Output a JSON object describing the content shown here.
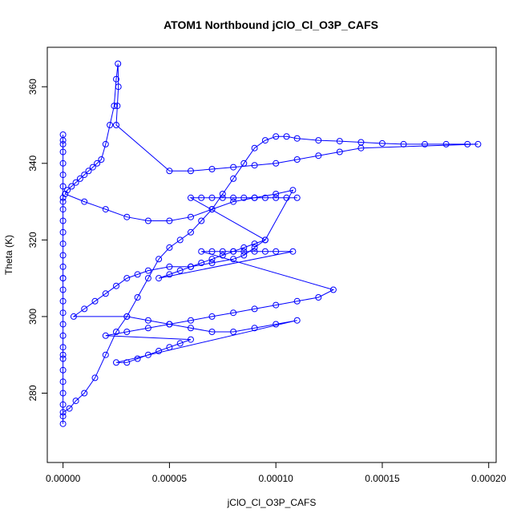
{
  "chart_data": {
    "type": "scatter",
    "title": "ATOM1 Northbound jClO_Cl_O3P_CAFS",
    "xlabel": "jClO_Cl_O3P_CAFS",
    "ylabel": "Theta (K)",
    "xlim": [
      -7.4e-06,
      0.0002035
    ],
    "ylim": [
      261.9,
      370.3
    ],
    "xticks": [
      0,
      5e-05,
      0.0001,
      0.00015,
      0.0002
    ],
    "xtick_labels": [
      "0.00000",
      "0.00005",
      "0.00010",
      "0.00015",
      "0.00020"
    ],
    "yticks": [
      280,
      300,
      320,
      340,
      360
    ],
    "ytick_labels": [
      "280",
      "300",
      "320",
      "340",
      "360"
    ],
    "grid": false,
    "marker": "open circle with connecting lines",
    "series_color": "#0000ff",
    "series": [
      {
        "name": "",
        "x": [
          0,
          0,
          0,
          0,
          0,
          0,
          0,
          0,
          0,
          0,
          0,
          0,
          0,
          0,
          0,
          0,
          0,
          0,
          0,
          0,
          0,
          0,
          0,
          0,
          0,
          0,
          0,
          0,
          0,
          0,
          0,
          0,
          3e-06,
          6e-06,
          1e-05,
          1.5e-05,
          2e-05,
          2.5e-05,
          3e-05,
          3.5e-05,
          4e-05,
          4.5e-05,
          5e-05,
          5.5e-05,
          6e-05,
          6.5e-05,
          7e-05,
          7.5e-05,
          8e-05,
          8.5e-05,
          9e-05,
          9.5e-05,
          0.0001,
          0.000105,
          0.00011,
          0.00012,
          0.00013,
          0.00014,
          0.00015,
          0.00016,
          0.00017,
          0.00018,
          0.00019,
          0.000195,
          0.00014,
          0.00013,
          0.00012,
          0.00011,
          0.0001,
          9e-05,
          8e-05,
          7e-05,
          6e-05,
          5e-05,
          2.5e-05,
          2.55e-05,
          2.6e-05,
          2.58e-05,
          2.5e-05,
          2.4e-05,
          2.2e-05,
          2e-05,
          1.8e-05,
          1.6e-05,
          1.4e-05,
          1.2e-05,
          1e-05,
          8e-06,
          6e-06,
          4e-06,
          2e-06,
          1e-06,
          1e-05,
          2e-05,
          3e-05,
          4e-05,
          5e-05,
          6e-05,
          7e-05,
          8e-05,
          9e-05,
          0.0001,
          0.000108,
          9.5e-05,
          9e-05,
          8.5e-05,
          8e-05,
          7e-05,
          6e-05,
          5e-05,
          4e-05,
          3.5e-05,
          3e-05,
          2.5e-05,
          2e-05,
          1.5e-05,
          1e-05,
          5e-06,
          3e-05,
          4e-05,
          5e-05,
          6e-05,
          7e-05,
          8e-05,
          9e-05,
          0.0001,
          0.00011,
          2.5e-05,
          3e-05,
          3.5e-05,
          4e-05,
          4.5e-05,
          5e-05,
          5.5e-05,
          6e-05,
          2e-05,
          3e-05,
          4e-05,
          5e-05,
          6e-05,
          7e-05,
          8e-05,
          9e-05,
          0.0001,
          0.00011,
          0.00012,
          0.000127,
          6.5e-05,
          7e-05,
          7.5e-05,
          8e-05,
          8.5e-05,
          9e-05,
          9.5e-05,
          0.0001,
          0.000108,
          4.5e-05,
          5e-05,
          5.5e-05,
          6e-05,
          6.5e-05,
          7e-05,
          7.5e-05,
          8e-05,
          8.5e-05,
          9e-05,
          9.5e-05,
          6e-05,
          6.5e-05,
          7e-05,
          7.5e-05,
          8e-05,
          8.5e-05,
          9e-05,
          9.5e-05,
          0.0001,
          0.000105,
          0.00011
        ],
        "y": [
          272,
          274,
          277,
          280,
          283,
          286,
          289,
          292,
          295,
          298,
          301,
          304,
          307,
          310,
          313,
          316,
          319,
          322,
          325,
          328,
          331,
          334,
          337,
          340,
          343,
          346,
          347.5,
          345,
          330,
          310,
          290,
          275,
          276,
          278,
          280,
          284,
          290,
          296,
          300,
          305,
          310,
          315,
          318,
          320,
          322,
          325,
          328,
          332,
          336,
          340,
          344,
          346,
          347,
          347,
          346.5,
          346,
          345.8,
          345.5,
          345.2,
          345,
          345,
          345,
          345,
          345,
          344,
          343,
          342,
          341,
          340,
          339.5,
          339,
          338.5,
          338,
          338,
          350,
          355,
          360,
          366,
          362,
          355,
          350,
          345,
          341,
          340,
          339,
          338,
          337,
          336,
          335,
          334,
          333,
          332,
          330,
          328,
          326,
          325,
          325,
          326,
          328,
          330,
          331,
          332,
          333,
          320,
          318,
          316,
          315,
          314,
          313,
          313,
          312,
          311,
          310,
          308,
          306,
          304,
          302,
          300,
          300,
          299,
          298,
          297,
          296,
          296,
          297,
          298,
          299,
          288,
          288,
          289,
          290,
          291,
          292,
          293,
          294,
          295,
          296,
          297,
          298,
          299,
          300,
          301,
          302,
          303,
          304,
          305,
          307,
          317,
          317,
          317,
          317,
          317,
          317,
          317,
          317,
          317,
          310,
          311,
          312,
          313,
          314,
          315,
          316,
          317,
          318,
          319,
          320,
          331,
          331,
          331,
          331,
          331,
          331,
          331,
          331,
          331,
          331,
          331
        ]
      }
    ]
  }
}
